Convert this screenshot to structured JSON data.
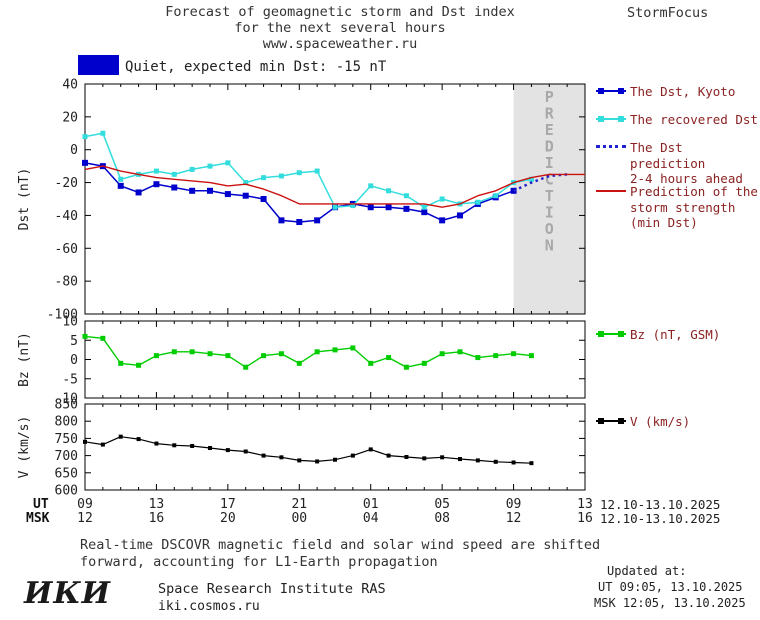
{
  "header": {
    "title_line1": "Forecast of geomagnetic storm and Dst index",
    "title_line2": "for the next several hours",
    "title_line3": "www.spaceweather.ru",
    "brand": "StormFocus"
  },
  "status": {
    "swatch_color": "#0000cd",
    "label": "Quiet, expected min Dst: -15 nT"
  },
  "colors": {
    "band": "#e3e3e3",
    "band_label_text": "#a8a8a8",
    "axis_text": "#222222",
    "body_text": "#333333"
  },
  "chart_data": [
    {
      "type": "line",
      "name": "dst-panel",
      "ylabel": "Dst (nT)",
      "ylim": [
        -100,
        40
      ],
      "yticks": [
        40,
        20,
        0,
        -20,
        -40,
        -60,
        -80,
        -100
      ],
      "xlim_hours": [
        0,
        28
      ],
      "xticks": {
        "hours": [
          0,
          4,
          8,
          12,
          16,
          20,
          24,
          28
        ],
        "ut": [
          "09",
          "13",
          "17",
          "21",
          "01",
          "05",
          "09",
          "13"
        ],
        "msk": [
          "12",
          "16",
          "20",
          "00",
          "04",
          "08",
          "12",
          "16"
        ]
      },
      "prediction_band_hours": [
        24,
        28
      ],
      "band_label": "PREDICTION",
      "grid": false,
      "series": [
        {
          "name": "The Dst, Kyoto",
          "color": "#0000cd",
          "style": "solid",
          "marker": "square",
          "marker_size": 6,
          "width": 1.5,
          "x": [
            0,
            1,
            2,
            3,
            4,
            5,
            6,
            7,
            8,
            9,
            10,
            11,
            12,
            13,
            14,
            15,
            16,
            17,
            18,
            19,
            20,
            21,
            22,
            23,
            24
          ],
          "y": [
            -8,
            -10,
            -22,
            -26,
            -21,
            -23,
            -25,
            -25,
            -27,
            -28,
            -30,
            -43,
            -44,
            -43,
            -35,
            -33,
            -35,
            -35,
            -36,
            -38,
            -43,
            -40,
            -33,
            -29,
            -25
          ]
        },
        {
          "name": "The recovered Dst",
          "color": "#33dddd",
          "style": "solid",
          "marker": "square",
          "marker_size": 5,
          "width": 1.5,
          "x": [
            0,
            1,
            2,
            3,
            4,
            5,
            6,
            7,
            8,
            9,
            10,
            11,
            12,
            13,
            14,
            15,
            16,
            17,
            18,
            19,
            20,
            21,
            22,
            23,
            24,
            25
          ],
          "y": [
            8,
            10,
            -18,
            -15,
            -13,
            -15,
            -12,
            -10,
            -8,
            -20,
            -17,
            -16,
            -14,
            -13,
            -35,
            -34,
            -22,
            -25,
            -28,
            -35,
            -30,
            -33,
            -32,
            -28,
            -20,
            -18
          ]
        },
        {
          "name": "The Dst prediction 2-4 hours ahead",
          "color": "#2222cc",
          "style": "dotted",
          "marker": "none",
          "width": 2.5,
          "x": [
            24,
            25,
            26,
            27
          ],
          "y": [
            -25,
            -20,
            -16,
            -15
          ]
        },
        {
          "name": "Prediction of the storm strength (min Dst)",
          "color": "#cc1111",
          "style": "solid",
          "marker": "none",
          "width": 1.4,
          "x": [
            0,
            1,
            2,
            3,
            4,
            5,
            6,
            7,
            8,
            9,
            10,
            11,
            12,
            13,
            14,
            15,
            16,
            17,
            18,
            19,
            20,
            21,
            22,
            23,
            24,
            25,
            26,
            27,
            28
          ],
          "y": [
            -12,
            -10,
            -13,
            -15,
            -17,
            -18,
            -19,
            -20,
            -22,
            -21,
            -24,
            -28,
            -33,
            -33,
            -33,
            -33,
            -33,
            -33,
            -33,
            -33,
            -35,
            -33,
            -28,
            -25,
            -20,
            -17,
            -15,
            -15,
            -15
          ]
        }
      ]
    },
    {
      "type": "line",
      "name": "bz-panel",
      "ylabel": "Bz (nT)",
      "ylim": [
        -10,
        10
      ],
      "yticks": [
        10,
        5,
        0,
        -5,
        -10
      ],
      "grid": false,
      "series": [
        {
          "name": "Bz (nT, GSM)",
          "color": "#00cc00",
          "style": "solid",
          "marker": "square",
          "marker_size": 5,
          "width": 1.4,
          "x": [
            0,
            1,
            2,
            3,
            4,
            5,
            6,
            7,
            8,
            9,
            10,
            11,
            12,
            13,
            14,
            15,
            16,
            17,
            18,
            19,
            20,
            21,
            22,
            23,
            24,
            25
          ],
          "y": [
            6,
            5.5,
            -1,
            -1.5,
            1,
            2,
            2,
            1.5,
            1,
            -2,
            1,
            1.5,
            -1,
            2,
            2.5,
            3,
            -1,
            0.5,
            -2,
            -1,
            1.5,
            2,
            0.5,
            1,
            1.5,
            1
          ]
        }
      ]
    },
    {
      "type": "line",
      "name": "v-panel",
      "ylabel": "V (km/s)",
      "ylim": [
        600,
        850
      ],
      "yticks": [
        850,
        800,
        750,
        700,
        650,
        600
      ],
      "grid": false,
      "series": [
        {
          "name": "V (km/s)",
          "color": "#000000",
          "style": "solid",
          "marker": "square",
          "marker_size": 4,
          "width": 1.2,
          "x": [
            0,
            1,
            2,
            3,
            4,
            5,
            6,
            7,
            8,
            9,
            10,
            11,
            12,
            13,
            14,
            15,
            16,
            17,
            18,
            19,
            20,
            21,
            22,
            23,
            24,
            25
          ],
          "y": [
            740,
            732,
            755,
            748,
            735,
            730,
            728,
            722,
            716,
            712,
            700,
            695,
            686,
            683,
            688,
            700,
            718,
            700,
            696,
            692,
            695,
            690,
            686,
            682,
            680,
            678
          ]
        }
      ]
    }
  ],
  "legend": {
    "text_color": "#8b2222",
    "entries": [
      {
        "label_lines": [
          "The Dst, Kyoto"
        ],
        "color": "#0000cd",
        "marker": "squares-line"
      },
      {
        "label_lines": [
          "The recovered Dst"
        ],
        "color": "#33dddd",
        "marker": "squares-line"
      },
      {
        "label_lines": [
          "The Dst prediction",
          "2-4 hours ahead"
        ],
        "color": "#2222cc",
        "marker": "dotted-line"
      },
      {
        "label_lines": [
          "Prediction of the",
          "storm strength",
          "(min Dst)"
        ],
        "color": "#cc1111",
        "marker": "line"
      },
      {
        "label_lines": [
          "Bz (nT, GSM)"
        ],
        "color": "#00cc00",
        "marker": "squares-line"
      },
      {
        "label_lines": [
          "V (km/s)"
        ],
        "color": "#000000",
        "marker": "squares-line"
      }
    ]
  },
  "xaxis": {
    "ut_label": "UT",
    "msk_label": "MSK",
    "ut_daterange": "12.10-13.10.2025",
    "msk_daterange": "12.10-13.10.2025"
  },
  "footnote": {
    "line1": "Real-time DSCOVR magnetic field and solar wind speed are shifted",
    "line2": "forward, accounting for L1-Earth propagation"
  },
  "footer": {
    "logo": "ИКИ",
    "institute": "Space Research Institute RAS",
    "site": "iki.cosmos.ru",
    "updated_label": "Updated at:",
    "updated_ut": "UT  09:05, 13.10.2025",
    "updated_msk": "MSK 12:05, 13.10.2025"
  }
}
